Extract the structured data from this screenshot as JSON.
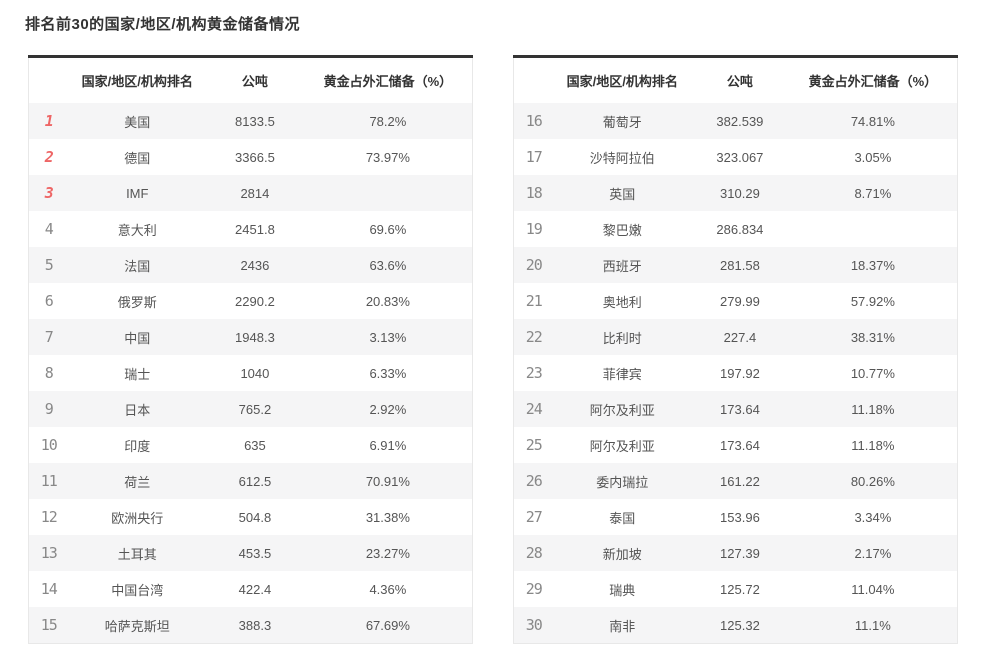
{
  "title": "排名前30的国家/地区/机构黄金储备情况",
  "table_headers": {
    "rank": "",
    "name": "国家/地区/机构排名",
    "tons": "公吨",
    "pct": "黄金占外汇储备（%）"
  },
  "colors": {
    "title_text": "#333333",
    "header_text": "#333333",
    "body_text": "#555555",
    "rank_grey": "#888888",
    "rank_top3_red": "#ee6666",
    "row_stripe": "#f5f5f6",
    "table_top_border": "#333333",
    "table_side_border": "#e8e8e8"
  },
  "chart_data": {
    "type": "table",
    "title": "排名前30的国家/地区/机构黄金储备情况",
    "columns": [
      "排名",
      "国家/地区/机构排名",
      "公吨",
      "黄金占外汇储备（%）"
    ],
    "layout": "two side-by-side tables, ranks 1-15 left and 16-30 right, top-3 ranks highlighted red, odd rows striped grey",
    "tables": [
      {
        "rows": [
          {
            "rank": 1,
            "name": "美国",
            "tons": "8133.5",
            "pct": "78.2%"
          },
          {
            "rank": 2,
            "name": "德国",
            "tons": "3366.5",
            "pct": "73.97%"
          },
          {
            "rank": 3,
            "name": "IMF",
            "tons": "2814",
            "pct": ""
          },
          {
            "rank": 4,
            "name": "意大利",
            "tons": "2451.8",
            "pct": "69.6%"
          },
          {
            "rank": 5,
            "name": "法国",
            "tons": "2436",
            "pct": "63.6%"
          },
          {
            "rank": 6,
            "name": "俄罗斯",
            "tons": "2290.2",
            "pct": "20.83%"
          },
          {
            "rank": 7,
            "name": "中国",
            "tons": "1948.3",
            "pct": "3.13%"
          },
          {
            "rank": 8,
            "name": "瑞士",
            "tons": "1040",
            "pct": "6.33%"
          },
          {
            "rank": 9,
            "name": "日本",
            "tons": "765.2",
            "pct": "2.92%"
          },
          {
            "rank": 10,
            "name": "印度",
            "tons": "635",
            "pct": "6.91%"
          },
          {
            "rank": 11,
            "name": "荷兰",
            "tons": "612.5",
            "pct": "70.91%"
          },
          {
            "rank": 12,
            "name": "欧洲央行",
            "tons": "504.8",
            "pct": "31.38%"
          },
          {
            "rank": 13,
            "name": "土耳其",
            "tons": "453.5",
            "pct": "23.27%"
          },
          {
            "rank": 14,
            "name": "中国台湾",
            "tons": "422.4",
            "pct": "4.36%"
          },
          {
            "rank": 15,
            "name": "哈萨克斯坦",
            "tons": "388.3",
            "pct": "67.69%"
          }
        ]
      },
      {
        "rows": [
          {
            "rank": 16,
            "name": "葡萄牙",
            "tons": "382.539",
            "pct": "74.81%"
          },
          {
            "rank": 17,
            "name": "沙特阿拉伯",
            "tons": "323.067",
            "pct": "3.05%"
          },
          {
            "rank": 18,
            "name": "英国",
            "tons": "310.29",
            "pct": "8.71%"
          },
          {
            "rank": 19,
            "name": "黎巴嫩",
            "tons": "286.834",
            "pct": ""
          },
          {
            "rank": 20,
            "name": "西班牙",
            "tons": "281.58",
            "pct": "18.37%"
          },
          {
            "rank": 21,
            "name": "奥地利",
            "tons": "279.99",
            "pct": "57.92%"
          },
          {
            "rank": 22,
            "name": "比利时",
            "tons": "227.4",
            "pct": "38.31%"
          },
          {
            "rank": 23,
            "name": "菲律宾",
            "tons": "197.92",
            "pct": "10.77%"
          },
          {
            "rank": 24,
            "name": "阿尔及利亚",
            "tons": "173.64",
            "pct": "11.18%"
          },
          {
            "rank": 25,
            "name": "阿尔及利亚",
            "tons": "173.64",
            "pct": "11.18%"
          },
          {
            "rank": 26,
            "name": "委内瑞拉",
            "tons": "161.22",
            "pct": "80.26%"
          },
          {
            "rank": 27,
            "name": "泰国",
            "tons": "153.96",
            "pct": "3.34%"
          },
          {
            "rank": 28,
            "name": "新加坡",
            "tons": "127.39",
            "pct": "2.17%"
          },
          {
            "rank": 29,
            "name": "瑞典",
            "tons": "125.72",
            "pct": "11.04%"
          },
          {
            "rank": 30,
            "name": "南非",
            "tons": "125.32",
            "pct": "11.1%"
          }
        ]
      }
    ]
  }
}
